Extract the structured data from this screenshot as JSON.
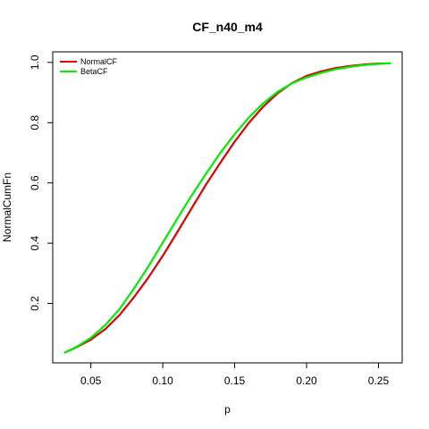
{
  "chart_data": {
    "type": "line",
    "title": "CF_n40_m4",
    "xlabel": "p",
    "ylabel": "NormalCumFn",
    "xlim": [
      0.0235,
      0.2665
    ],
    "ylim": [
      0.003,
      1.035
    ],
    "xticks": [
      0.05,
      0.1,
      0.15,
      0.2,
      0.25
    ],
    "xtick_labels": [
      "0.05",
      "0.10",
      "0.15",
      "0.20",
      "0.25"
    ],
    "yticks": [
      0.2,
      0.4,
      0.6,
      0.8,
      1.0
    ],
    "ytick_labels": [
      "0.2",
      "0.4",
      "0.6",
      "0.8",
      "1.0"
    ],
    "grid": false,
    "legend_position": "top-left",
    "series": [
      {
        "name": "NormalCF",
        "color": "#dd0000",
        "x": [
          0.032,
          0.04,
          0.05,
          0.06,
          0.07,
          0.08,
          0.09,
          0.1,
          0.11,
          0.12,
          0.13,
          0.14,
          0.15,
          0.16,
          0.17,
          0.18,
          0.19,
          0.2,
          0.21,
          0.22,
          0.23,
          0.24,
          0.25,
          0.258
        ],
        "y": [
          0.037,
          0.055,
          0.08,
          0.115,
          0.162,
          0.221,
          0.286,
          0.358,
          0.436,
          0.515,
          0.594,
          0.667,
          0.737,
          0.8,
          0.854,
          0.898,
          0.932,
          0.955,
          0.97,
          0.981,
          0.988,
          0.993,
          0.996,
          0.997
        ]
      },
      {
        "name": "BetaCF",
        "color": "#00ee00",
        "x": [
          0.032,
          0.04,
          0.05,
          0.06,
          0.07,
          0.08,
          0.09,
          0.1,
          0.11,
          0.12,
          0.13,
          0.14,
          0.15,
          0.16,
          0.17,
          0.18,
          0.19,
          0.2,
          0.21,
          0.22,
          0.23,
          0.24,
          0.25,
          0.258
        ],
        "y": [
          0.037,
          0.056,
          0.086,
          0.128,
          0.182,
          0.25,
          0.323,
          0.402,
          0.481,
          0.558,
          0.63,
          0.7,
          0.762,
          0.818,
          0.865,
          0.903,
          0.931,
          0.95,
          0.965,
          0.977,
          0.985,
          0.991,
          0.995,
          0.997
        ]
      }
    ]
  }
}
